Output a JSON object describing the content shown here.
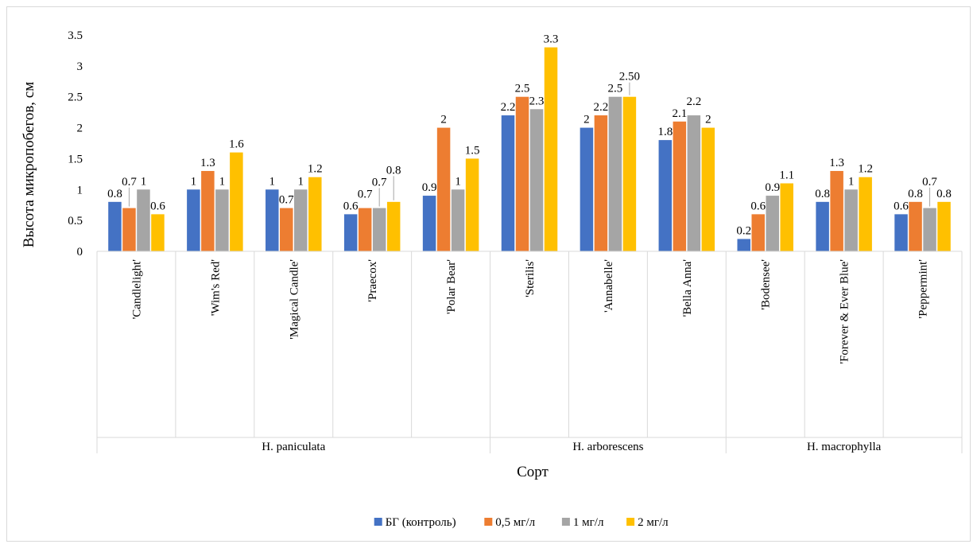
{
  "chart_data": {
    "type": "bar",
    "title": "",
    "xlabel": "Сорт",
    "ylabel": "Высота микропобегов, см",
    "ylim": [
      0,
      3.5
    ],
    "yticks": [
      0,
      0.5,
      1,
      1.5,
      2,
      2.5,
      3,
      3.5
    ],
    "ytick_labels": [
      "0",
      "0.5",
      "1",
      "1.5",
      "2",
      "2.5",
      "3",
      "3.5"
    ],
    "grid": false,
    "legend_position": "bottom",
    "categories": [
      "'Candlelight'",
      "'Wim's Red'",
      "'Magical Candle'",
      "'Praecox'",
      "'Polar Bear'",
      "'Sterilis'",
      "'Annabelle'",
      "'Bella Anna'",
      "'Bodensee'",
      "'Forever & Ever Blue'",
      "'Peppermint'"
    ],
    "groups": [
      {
        "name": "H. paniculata",
        "count": 5
      },
      {
        "name": "H. arborescens",
        "count": 3
      },
      {
        "name": "H. macrophylla",
        "count": 3
      }
    ],
    "series": [
      {
        "name": "БГ (контроль)",
        "color": "#4472c4",
        "values": [
          0.8,
          1,
          1,
          0.6,
          0.9,
          2.2,
          2,
          1.8,
          0.2,
          0.8,
          0.6
        ],
        "labels": [
          "0.8",
          "1",
          "1",
          "0.6",
          "0.9",
          "2.2",
          "2",
          "1.8",
          "0.2",
          "0.8",
          "0.6"
        ]
      },
      {
        "name": "0,5 мг/л",
        "color": "#ed7d31",
        "values": [
          0.7,
          1.3,
          0.7,
          0.7,
          2,
          2.5,
          2.2,
          2.1,
          0.6,
          1.3,
          0.8
        ],
        "labels": [
          "0.7",
          "1.3",
          "0.7",
          "0.7",
          "2",
          "2.5",
          "2.2",
          "2.1",
          "0.6",
          "1.3",
          "0.8"
        ]
      },
      {
        "name": "1 мг/л",
        "color": "#a5a5a5",
        "values": [
          1,
          1,
          1,
          0.7,
          1,
          2.3,
          2.5,
          2.2,
          0.9,
          1,
          0.7
        ],
        "labels": [
          "1",
          "1",
          "1",
          "0.7",
          "1",
          "2.3",
          "2.5",
          "2.2",
          "0.9",
          "1",
          "0.7"
        ]
      },
      {
        "name": "2 мг/л",
        "color": "#ffc000",
        "values": [
          0.6,
          1.6,
          1.2,
          0.8,
          1.5,
          3.3,
          2.5,
          2,
          1.1,
          1.2,
          0.8
        ],
        "labels": [
          "0.6",
          "1.6",
          "1.2",
          "0.8",
          "1.5",
          "3.3",
          "2.50",
          "2",
          "1.1",
          "1.2",
          "0.8"
        ]
      }
    ]
  }
}
